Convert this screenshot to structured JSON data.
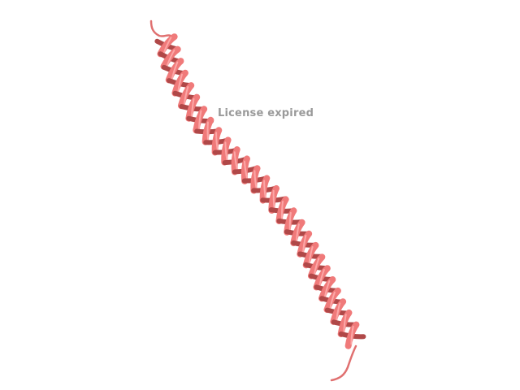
{
  "viewer": {
    "watermark_text": "License expired"
  },
  "structure": {
    "representation": "cartoon",
    "secondary_structure": "alpha-helix",
    "color": "#f07a7a",
    "shadow_color": "#b04848",
    "highlight_color": "#ffb3b3",
    "background": "#ffffff"
  }
}
